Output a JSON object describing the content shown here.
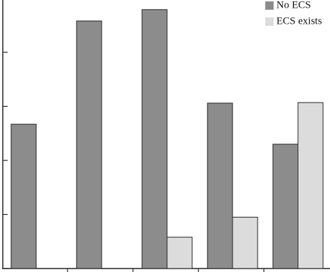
{
  "chart_data": {
    "type": "bar",
    "categories": [
      null,
      null,
      null,
      null,
      null
    ],
    "series": [
      {
        "name": "No ECS",
        "color": "#8c8c8c",
        "values": [
          2.67,
          4.58,
          4.79,
          3.06,
          2.3
        ]
      },
      {
        "name": "ECS exists",
        "color": "#dcdcdc",
        "values": [
          null,
          null,
          0.58,
          0.95,
          3.07
        ]
      }
    ],
    "ylim": [
      0,
      5
    ],
    "yticks": [
      0,
      1,
      2,
      3,
      4,
      5
    ],
    "legend": "top-right"
  }
}
